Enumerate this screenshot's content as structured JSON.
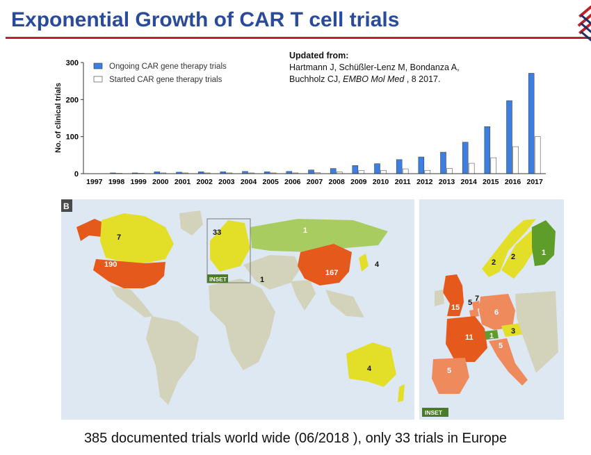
{
  "title": "Exponential Growth of CAR T cell trials",
  "reference": {
    "heading": "Updated from:",
    "line1": "Hartmann J, Schüßler-Lenz M, Bondanza A,",
    "line2_pre": "Buchholz  CJ, ",
    "line2_journal": "EMBO Mol Med",
    "line2_post": " , 8 2017."
  },
  "chart_data": {
    "type": "bar",
    "ylabel": "No. of clinical trials",
    "xlabel": "",
    "ylim": [
      0,
      300
    ],
    "yticks": [
      "0",
      "100",
      "200",
      "300"
    ],
    "categories": [
      "1997",
      "1998",
      "1999",
      "2000",
      "2001",
      "2002",
      "2003",
      "2004",
      "2005",
      "2006",
      "2007",
      "2008",
      "2009",
      "2010",
      "2011",
      "2012",
      "2013",
      "2014",
      "2015",
      "2016",
      "2017"
    ],
    "series": [
      {
        "name": "Ongoing CAR gene therapy trials",
        "color": "#3d7fe0",
        "values": [
          0,
          2,
          2,
          5,
          4,
          5,
          5,
          6,
          5,
          6,
          10,
          14,
          22,
          27,
          38,
          45,
          58,
          85,
          127,
          197,
          271
        ]
      },
      {
        "name": "Started CAR gene therapy trials",
        "color": "#ffffff",
        "values": [
          0,
          1,
          1,
          2,
          2,
          2,
          2,
          2,
          2,
          2,
          3,
          5,
          8,
          9,
          13,
          9,
          14,
          28,
          43,
          73,
          100
        ]
      }
    ],
    "legend_position": "top-left"
  },
  "world_map": {
    "panel_label": "B",
    "inset_label": "INSET",
    "counts": {
      "canada": "7",
      "usa": "190",
      "europe": "33",
      "russia": "1",
      "china": "167",
      "japan": "4",
      "israel": "1",
      "australia": "4"
    },
    "colors": {
      "ocean": "#dde8f3",
      "land": "#d3d3bc",
      "high": "#e55a1c",
      "mid": "#e3df28",
      "low": "#a9cc60",
      "panel": "#4a4a4a"
    }
  },
  "europe_map": {
    "inset_label": "INSET",
    "counts": {
      "finland": "1",
      "sweden": "2",
      "norway": "2",
      "uk": "15",
      "netherlands": "5",
      "belgium": "7",
      "germany": "6",
      "france": "11",
      "switzerland": "1",
      "czechia": "3",
      "italy": "5",
      "spain": "5"
    },
    "colors": {
      "high": "#e55a1c",
      "orange": "#ee8a5c",
      "mid": "#e3df28",
      "green": "#5f9d2a"
    }
  },
  "caption": "385 documented trials world wide (06/2018 ), only 33 trials in Europe"
}
